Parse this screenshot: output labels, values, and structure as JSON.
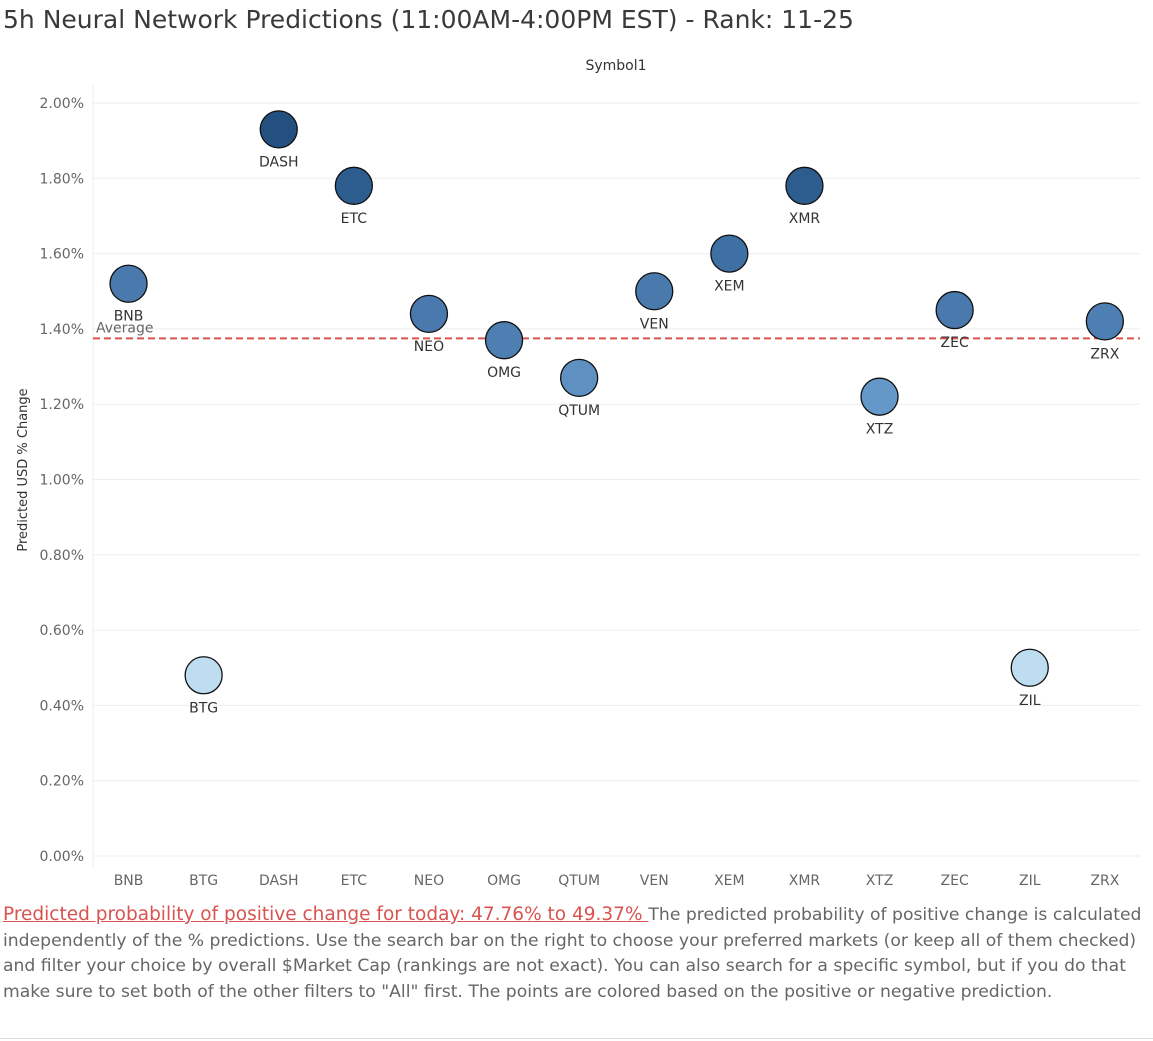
{
  "title": "5h Neural Network Predictions (11:00AM-4:00PM EST) - Rank: 11-25",
  "chart_data": {
    "type": "scatter",
    "column_header": "Symbol1",
    "ylabel": "Predicted USD % Change",
    "xlabel": "",
    "ylim": [
      0,
      2.1
    ],
    "y_ticks": [
      {
        "value": 0.0,
        "label": "0.00%"
      },
      {
        "value": 0.2,
        "label": "0.20%"
      },
      {
        "value": 0.4,
        "label": "0.40%"
      },
      {
        "value": 0.6,
        "label": "0.60%"
      },
      {
        "value": 0.8,
        "label": "0.80%"
      },
      {
        "value": 1.0,
        "label": "1.00%"
      },
      {
        "value": 1.2,
        "label": "1.20%"
      },
      {
        "value": 1.4,
        "label": "1.40%"
      },
      {
        "value": 1.6,
        "label": "1.60%"
      },
      {
        "value": 1.8,
        "label": "1.80%"
      },
      {
        "value": 2.0,
        "label": "2.00%"
      }
    ],
    "categories": [
      "BNB",
      "BTG",
      "DASH",
      "ETC",
      "NEO",
      "OMG",
      "QTUM",
      "VEN",
      "XEM",
      "XMR",
      "XTZ",
      "ZEC",
      "ZIL",
      "ZRX"
    ],
    "points": [
      {
        "symbol": "BNB",
        "value": 1.52,
        "color": "#4a7aad",
        "label_position": "below"
      },
      {
        "symbol": "BTG",
        "value": 0.48,
        "color": "#bfddf0",
        "label_position": "below"
      },
      {
        "symbol": "DASH",
        "value": 1.93,
        "color": "#23507f",
        "label_position": "below"
      },
      {
        "symbol": "ETC",
        "value": 1.78,
        "color": "#2d5c8f",
        "label_position": "below"
      },
      {
        "symbol": "NEO",
        "value": 1.44,
        "color": "#4a7aad",
        "label_position": "below"
      },
      {
        "symbol": "OMG",
        "value": 1.37,
        "color": "#4e7fb2",
        "label_position": "below"
      },
      {
        "symbol": "QTUM",
        "value": 1.27,
        "color": "#5e90c1",
        "label_position": "below"
      },
      {
        "symbol": "VEN",
        "value": 1.5,
        "color": "#4a7aad",
        "label_position": "below"
      },
      {
        "symbol": "XEM",
        "value": 1.6,
        "color": "#3f70a3",
        "label_position": "below"
      },
      {
        "symbol": "XMR",
        "value": 1.78,
        "color": "#2d5c8f",
        "label_position": "below"
      },
      {
        "symbol": "XTZ",
        "value": 1.22,
        "color": "#6398c8",
        "label_position": "below"
      },
      {
        "symbol": "ZEC",
        "value": 1.45,
        "color": "#4a7aad",
        "label_position": "below"
      },
      {
        "symbol": "ZIL",
        "value": 0.5,
        "color": "#bfddf0",
        "label_position": "below"
      },
      {
        "symbol": "ZRX",
        "value": 1.42,
        "color": "#4e7fb2",
        "label_position": "below"
      }
    ],
    "reference_line": {
      "label": "Average",
      "value": 1.375,
      "color": "#d9534f",
      "style": "dashed"
    },
    "grid": true,
    "legend": "none"
  },
  "caption": {
    "highlight": "Predicted probability of positive change for today:  47.76% to 49.37% ",
    "body": "The predicted probability of positive change is calculated independently of the % predictions. Use the search bar on the right to choose your preferred markets (or keep all of them checked) and filter your choice by overall $Market Cap (rankings are not exact). You can also search for a specific symbol, but if you do that make sure to set both of the other filters to \"All\" first. The points are colored based on the positive or negative prediction."
  }
}
